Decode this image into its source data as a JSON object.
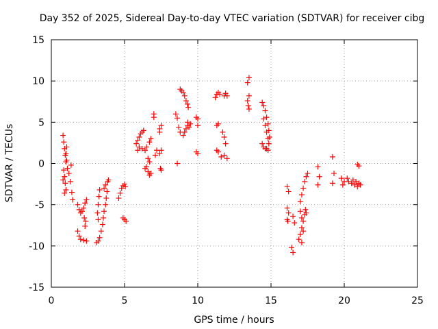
{
  "chart_data": {
    "type": "scatter",
    "title": "Day 352 of 2025, Sidereal Day-to-day VTEC variation (SDTVAR) for receiver cibg",
    "xlabel": "GPS time / hours",
    "ylabel": "SDTVAR / TECUs",
    "xlim": [
      0,
      25
    ],
    "ylim": [
      -15,
      15
    ],
    "xticks": [
      0,
      5,
      10,
      15,
      20,
      25
    ],
    "yticks": [
      -15,
      -10,
      -5,
      0,
      5,
      10,
      15
    ],
    "grid": true,
    "marker": "+",
    "color": "#ff0000",
    "series": [
      {
        "name": "SDTVAR",
        "points": [
          [
            0.8,
            3.4
          ],
          [
            0.85,
            2.6
          ],
          [
            0.9,
            1.8
          ],
          [
            0.95,
            1.0
          ],
          [
            1.0,
            0.2
          ],
          [
            0.85,
            -0.8
          ],
          [
            0.9,
            -1.6
          ],
          [
            0.95,
            -2.4
          ],
          [
            1.0,
            -3.2
          ],
          [
            0.8,
            -2.0
          ],
          [
            0.9,
            -3.6
          ],
          [
            1.05,
            2.0
          ],
          [
            1.0,
            1.2
          ],
          [
            1.05,
            0.4
          ],
          [
            1.1,
            -0.6
          ],
          [
            1.2,
            -1.2
          ],
          [
            1.3,
            -2.2
          ],
          [
            1.4,
            -3.5
          ],
          [
            1.45,
            -4.4
          ],
          [
            1.35,
            -0.2
          ],
          [
            1.8,
            -5.0
          ],
          [
            1.9,
            -5.6
          ],
          [
            2.0,
            -6.0
          ],
          [
            2.1,
            -5.8
          ],
          [
            2.2,
            -5.4
          ],
          [
            1.8,
            -8.2
          ],
          [
            1.9,
            -8.8
          ],
          [
            2.0,
            -9.2
          ],
          [
            2.2,
            -9.3
          ],
          [
            2.4,
            -9.4
          ],
          [
            2.35,
            -7.0
          ],
          [
            2.3,
            -7.6
          ],
          [
            2.25,
            -6.6
          ],
          [
            2.4,
            -4.4
          ],
          [
            2.3,
            -4.8
          ],
          [
            3.1,
            -9.6
          ],
          [
            3.2,
            -9.4
          ],
          [
            3.3,
            -9.0
          ],
          [
            3.4,
            -8.2
          ],
          [
            3.5,
            -7.4
          ],
          [
            3.55,
            -6.6
          ],
          [
            3.6,
            -5.8
          ],
          [
            3.7,
            -5.0
          ],
          [
            3.75,
            -4.2
          ],
          [
            3.8,
            -3.4
          ],
          [
            3.6,
            -3.0
          ],
          [
            3.7,
            -2.6
          ],
          [
            3.85,
            -2.2
          ],
          [
            3.9,
            -2.0
          ],
          [
            3.2,
            -5.0
          ],
          [
            3.25,
            -4.0
          ],
          [
            3.3,
            -3.2
          ],
          [
            3.15,
            -6.0
          ],
          [
            3.2,
            -6.8
          ],
          [
            4.6,
            -4.2
          ],
          [
            4.7,
            -3.6
          ],
          [
            4.8,
            -3.0
          ],
          [
            4.9,
            -2.7
          ],
          [
            5.0,
            -2.5
          ],
          [
            5.05,
            -2.8
          ],
          [
            4.9,
            -6.6
          ],
          [
            5.0,
            -6.8
          ],
          [
            5.1,
            -7.0
          ],
          [
            5.8,
            2.4
          ],
          [
            5.9,
            2.8
          ],
          [
            6.0,
            3.2
          ],
          [
            6.1,
            3.6
          ],
          [
            6.2,
            3.8
          ],
          [
            6.3,
            4.0
          ],
          [
            5.9,
            1.6
          ],
          [
            6.0,
            2.0
          ],
          [
            6.2,
            1.8
          ],
          [
            6.4,
            1.6
          ],
          [
            6.5,
            2.0
          ],
          [
            6.4,
            -0.6
          ],
          [
            6.5,
            -0.4
          ],
          [
            6.6,
            -1.0
          ],
          [
            6.7,
            -1.4
          ],
          [
            6.8,
            -1.2
          ],
          [
            6.6,
            0.6
          ],
          [
            6.7,
            0.2
          ],
          [
            6.8,
            3.0
          ],
          [
            6.7,
            2.6
          ],
          [
            7.0,
            6.0
          ],
          [
            7.0,
            5.6
          ],
          [
            7.1,
            1.0
          ],
          [
            7.2,
            1.6
          ],
          [
            7.4,
            4.2
          ],
          [
            7.5,
            4.6
          ],
          [
            7.4,
            3.8
          ],
          [
            7.5,
            1.6
          ],
          [
            7.4,
            1.2
          ],
          [
            7.45,
            -0.6
          ],
          [
            7.5,
            -0.8
          ],
          [
            8.5,
            6.0
          ],
          [
            8.6,
            5.5
          ],
          [
            8.6,
            0.0
          ],
          [
            8.7,
            4.4
          ],
          [
            8.8,
            3.8
          ],
          [
            8.8,
            9.0
          ],
          [
            8.9,
            8.8
          ],
          [
            9.0,
            8.6
          ],
          [
            9.1,
            8.2
          ],
          [
            9.2,
            7.6
          ],
          [
            9.3,
            7.2
          ],
          [
            9.35,
            6.8
          ],
          [
            9.0,
            3.4
          ],
          [
            9.1,
            3.8
          ],
          [
            9.2,
            4.2
          ],
          [
            9.3,
            4.6
          ],
          [
            9.4,
            4.4
          ],
          [
            9.5,
            4.8
          ],
          [
            9.3,
            5.0
          ],
          [
            9.9,
            5.6
          ],
          [
            10.0,
            5.4
          ],
          [
            10.0,
            4.6
          ],
          [
            9.9,
            1.4
          ],
          [
            10.0,
            1.2
          ],
          [
            11.2,
            8.0
          ],
          [
            11.3,
            8.4
          ],
          [
            11.4,
            8.6
          ],
          [
            11.5,
            8.4
          ],
          [
            11.8,
            8.2
          ],
          [
            11.9,
            8.5
          ],
          [
            12.0,
            8.2
          ],
          [
            11.3,
            4.6
          ],
          [
            11.4,
            4.8
          ],
          [
            11.7,
            3.8
          ],
          [
            11.8,
            3.2
          ],
          [
            11.9,
            2.4
          ],
          [
            11.3,
            1.6
          ],
          [
            11.4,
            1.4
          ],
          [
            11.6,
            0.8
          ],
          [
            11.8,
            1.0
          ],
          [
            12.0,
            0.6
          ],
          [
            13.4,
            9.8
          ],
          [
            13.5,
            10.4
          ],
          [
            13.4,
            7.6
          ],
          [
            13.5,
            8.2
          ],
          [
            13.45,
            7.0
          ],
          [
            13.5,
            6.6
          ],
          [
            14.4,
            7.4
          ],
          [
            14.5,
            7.0
          ],
          [
            14.6,
            6.4
          ],
          [
            14.7,
            5.6
          ],
          [
            14.8,
            4.8
          ],
          [
            14.85,
            4.0
          ],
          [
            14.9,
            3.2
          ],
          [
            14.5,
            5.4
          ],
          [
            14.6,
            4.6
          ],
          [
            14.7,
            3.8
          ],
          [
            14.8,
            3.0
          ],
          [
            14.85,
            2.4
          ],
          [
            14.4,
            2.4
          ],
          [
            14.5,
            2.0
          ],
          [
            14.6,
            1.8
          ],
          [
            14.7,
            1.8
          ],
          [
            14.8,
            1.6
          ],
          [
            16.1,
            -2.8
          ],
          [
            16.2,
            -3.4
          ],
          [
            16.1,
            -5.4
          ],
          [
            16.2,
            -6.0
          ],
          [
            16.1,
            -6.8
          ],
          [
            16.15,
            -7.0
          ],
          [
            16.5,
            -6.4
          ],
          [
            16.6,
            -7.2
          ],
          [
            16.4,
            -10.2
          ],
          [
            16.5,
            -10.8
          ],
          [
            16.9,
            -9.2
          ],
          [
            17.0,
            -8.6
          ],
          [
            17.1,
            -7.8
          ],
          [
            17.2,
            -7.0
          ],
          [
            17.3,
            -6.2
          ],
          [
            17.35,
            -5.6
          ],
          [
            17.4,
            -6.0
          ],
          [
            17.0,
            -4.6
          ],
          [
            17.1,
            -3.8
          ],
          [
            17.2,
            -3.0
          ],
          [
            17.3,
            -2.2
          ],
          [
            17.4,
            -1.6
          ],
          [
            17.5,
            -1.2
          ],
          [
            17.0,
            -5.8
          ],
          [
            17.1,
            -6.6
          ],
          [
            17.2,
            -8.2
          ],
          [
            17.1,
            -9.6
          ],
          [
            18.2,
            -2.6
          ],
          [
            18.2,
            -0.4
          ],
          [
            18.3,
            -1.6
          ],
          [
            19.2,
            0.8
          ],
          [
            19.3,
            -1.2
          ],
          [
            19.2,
            -2.4
          ],
          [
            19.8,
            -1.8
          ],
          [
            19.9,
            -2.6
          ],
          [
            20.0,
            -2.2
          ],
          [
            20.2,
            -1.8
          ],
          [
            20.3,
            -2.2
          ],
          [
            20.5,
            -2.4
          ],
          [
            20.6,
            -2.0
          ],
          [
            20.7,
            -2.6
          ],
          [
            20.8,
            -2.2
          ],
          [
            20.9,
            -2.8
          ],
          [
            21.0,
            -2.4
          ],
          [
            21.1,
            -2.6
          ],
          [
            20.9,
            -0.1
          ],
          [
            21.0,
            -0.3
          ]
        ]
      }
    ]
  }
}
